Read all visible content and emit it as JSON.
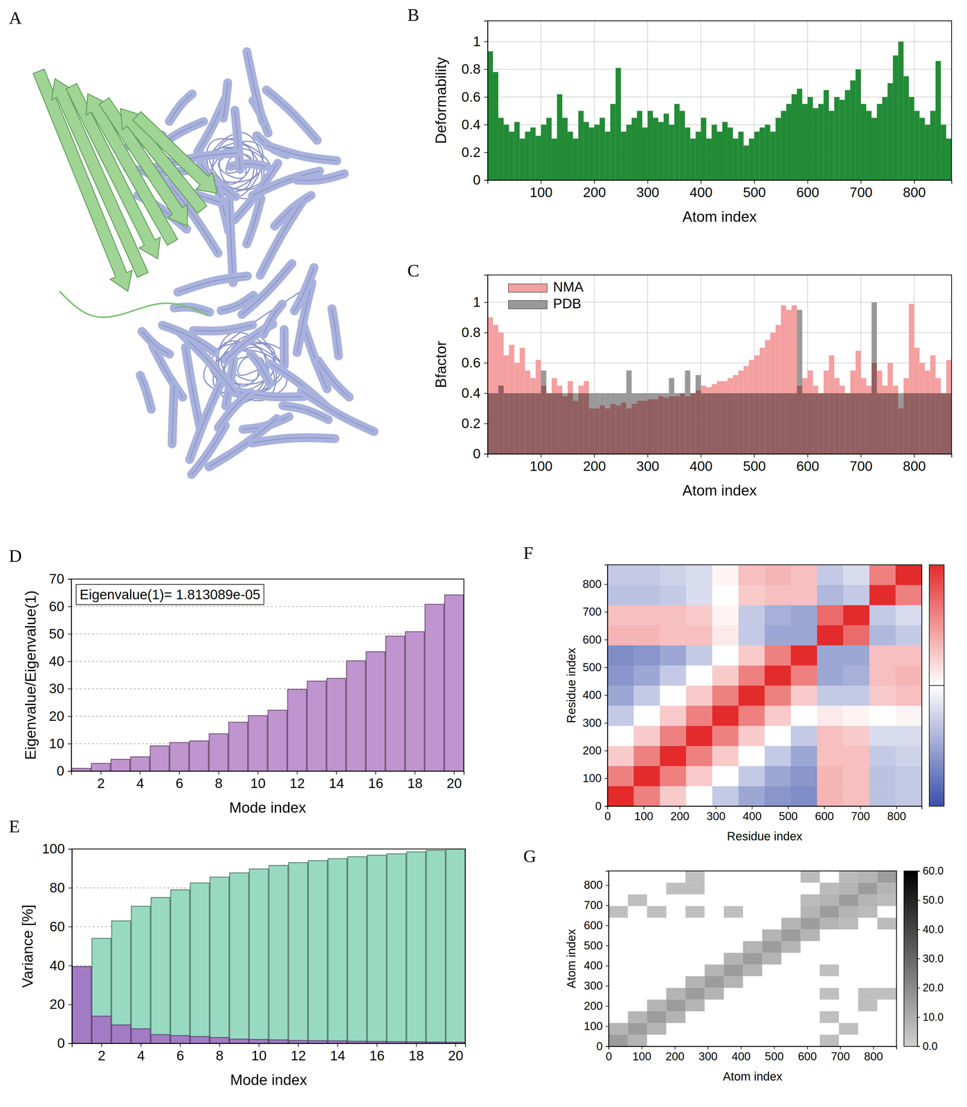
{
  "chart_data": [
    {
      "type": "structure",
      "panel": "A"
    },
    {
      "type": "bar",
      "panel": "B",
      "x_label": "Atom index",
      "y_label": "Deformability",
      "x": [
        5,
        15,
        25,
        35,
        45,
        55,
        65,
        75,
        85,
        95,
        105,
        115,
        125,
        135,
        145,
        155,
        165,
        175,
        185,
        195,
        205,
        215,
        225,
        235,
        245,
        255,
        265,
        275,
        285,
        295,
        305,
        315,
        325,
        335,
        345,
        355,
        365,
        375,
        385,
        395,
        405,
        415,
        425,
        435,
        445,
        455,
        465,
        475,
        485,
        495,
        505,
        515,
        525,
        535,
        545,
        555,
        565,
        575,
        585,
        595,
        605,
        615,
        625,
        635,
        645,
        655,
        665,
        675,
        685,
        695,
        705,
        715,
        725,
        735,
        745,
        755,
        765,
        775,
        785,
        795,
        805,
        815,
        825,
        835,
        845,
        855,
        865
      ],
      "values": [
        0.93,
        0.78,
        0.45,
        0.4,
        0.35,
        0.42,
        0.3,
        0.35,
        0.38,
        0.32,
        0.4,
        0.45,
        0.3,
        0.62,
        0.45,
        0.35,
        0.3,
        0.5,
        0.42,
        0.38,
        0.4,
        0.45,
        0.35,
        0.55,
        0.81,
        0.35,
        0.4,
        0.45,
        0.5,
        0.38,
        0.5,
        0.45,
        0.42,
        0.48,
        0.4,
        0.55,
        0.5,
        0.38,
        0.3,
        0.35,
        0.45,
        0.3,
        0.4,
        0.35,
        0.42,
        0.38,
        0.3,
        0.35,
        0.25,
        0.3,
        0.35,
        0.38,
        0.4,
        0.35,
        0.45,
        0.5,
        0.55,
        0.62,
        0.66,
        0.55,
        0.6,
        0.52,
        0.55,
        0.65,
        0.5,
        0.6,
        0.58,
        0.65,
        0.72,
        0.8,
        0.55,
        0.5,
        0.45,
        0.55,
        0.6,
        0.7,
        0.9,
        1.0,
        0.75,
        0.6,
        0.5,
        0.45,
        0.4,
        0.5,
        0.86,
        0.4,
        0.3
      ],
      "color": "#238b36",
      "xlim": [
        0,
        870
      ],
      "ylim": [
        0,
        1.15
      ],
      "xticks": [
        100,
        200,
        300,
        400,
        500,
        600,
        700,
        800
      ],
      "yticks": [
        0,
        0.2,
        0.4,
        0.6,
        0.8,
        1
      ],
      "grid": true
    },
    {
      "type": "bar",
      "panel": "C",
      "x_label": "Atom index",
      "y_label": "Bfactor",
      "x": [
        5,
        15,
        25,
        35,
        45,
        55,
        65,
        75,
        85,
        95,
        105,
        115,
        125,
        135,
        145,
        155,
        165,
        175,
        185,
        195,
        205,
        215,
        225,
        235,
        245,
        255,
        265,
        275,
        285,
        295,
        305,
        315,
        325,
        335,
        345,
        355,
        365,
        375,
        385,
        395,
        405,
        415,
        425,
        435,
        445,
        455,
        465,
        475,
        485,
        495,
        505,
        515,
        525,
        535,
        545,
        555,
        565,
        575,
        585,
        595,
        605,
        615,
        625,
        635,
        645,
        655,
        665,
        675,
        685,
        695,
        705,
        715,
        725,
        735,
        745,
        755,
        765,
        775,
        785,
        795,
        805,
        815,
        825,
        835,
        845,
        855,
        865
      ],
      "series": [
        {
          "name": "NMA",
          "color": "#f4a0a0",
          "values": [
            0.9,
            0.85,
            0.8,
            0.65,
            0.72,
            0.6,
            0.7,
            0.55,
            0.5,
            0.62,
            0.45,
            0.4,
            0.5,
            0.45,
            0.38,
            0.48,
            0.35,
            0.45,
            0.48,
            0.3,
            0.3,
            0.32,
            0.3,
            0.33,
            0.32,
            0.34,
            0.3,
            0.33,
            0.35,
            0.35,
            0.36,
            0.36,
            0.38,
            0.37,
            0.38,
            0.38,
            0.4,
            0.38,
            0.4,
            0.42,
            0.45,
            0.44,
            0.46,
            0.48,
            0.48,
            0.5,
            0.52,
            0.55,
            0.58,
            0.62,
            0.65,
            0.7,
            0.75,
            0.8,
            0.85,
            0.98,
            0.95,
            0.98,
            0.45,
            0.5,
            0.55,
            0.45,
            0.4,
            0.55,
            0.65,
            0.5,
            0.45,
            0.4,
            0.55,
            0.68,
            0.5,
            0.45,
            0.6,
            0.55,
            0.45,
            0.6,
            0.45,
            0.3,
            0.5,
            0.99,
            0.7,
            0.6,
            0.55,
            0.65,
            0.5,
            0.4,
            0.62
          ]
        },
        {
          "name": "PDB",
          "color": "#999999",
          "values": [
            0.4,
            0.4,
            0.45,
            0.4,
            0.4,
            0.4,
            0.4,
            0.4,
            0.4,
            0.4,
            0.55,
            0.4,
            0.4,
            0.4,
            0.4,
            0.4,
            0.4,
            0.4,
            0.4,
            0.4,
            0.4,
            0.4,
            0.4,
            0.4,
            0.4,
            0.4,
            0.55,
            0.4,
            0.4,
            0.4,
            0.4,
            0.4,
            0.4,
            0.4,
            0.5,
            0.4,
            0.4,
            0.55,
            0.4,
            0.52,
            0.4,
            0.4,
            0.4,
            0.4,
            0.4,
            0.4,
            0.4,
            0.4,
            0.4,
            0.4,
            0.4,
            0.4,
            0.4,
            0.4,
            0.4,
            0.4,
            0.4,
            0.4,
            0.95,
            0.4,
            0.4,
            0.4,
            0.4,
            0.4,
            0.4,
            0.4,
            0.4,
            0.4,
            0.4,
            0.4,
            0.4,
            0.4,
            1.0,
            0.4,
            0.4,
            0.4,
            0.4,
            0.4,
            0.4,
            0.4,
            0.4,
            0.4,
            0.4,
            0.4,
            0.4,
            0.4,
            0.4
          ]
        }
      ],
      "xlim": [
        0,
        870
      ],
      "ylim": [
        0,
        1.18
      ],
      "xticks": [
        100,
        200,
        300,
        400,
        500,
        600,
        700,
        800
      ],
      "yticks": [
        0,
        0.2,
        0.4,
        0.6,
        0.8,
        1
      ],
      "grid": true,
      "legend": "upper left"
    },
    {
      "type": "bar",
      "panel": "D",
      "x_label": "Mode index",
      "y_label": "Eigenvalue/Eigenvalue(1)",
      "annotation": "Eigenvalue(1)= 1.813089e-05",
      "x": [
        1,
        2,
        3,
        4,
        5,
        6,
        7,
        8,
        9,
        10,
        11,
        12,
        13,
        14,
        15,
        16,
        17,
        18,
        19,
        20
      ],
      "values": [
        1,
        2.8,
        4.3,
        5.2,
        9.2,
        10.4,
        11,
        13.6,
        17.8,
        20.2,
        22.2,
        29.8,
        32.8,
        33.8,
        40.2,
        43.5,
        49.2,
        50.8,
        60.8,
        64.2
      ],
      "color": "#bf94cf",
      "xlim": [
        0.5,
        20.5
      ],
      "ylim": [
        0,
        70
      ],
      "xticks": [
        2,
        4,
        6,
        8,
        10,
        12,
        14,
        16,
        18,
        20
      ],
      "yticks": [
        0,
        10,
        20,
        30,
        40,
        50,
        60,
        70
      ],
      "grid": true
    },
    {
      "type": "bar",
      "panel": "E",
      "x_label": "Mode index",
      "y_label": "Variance [%]",
      "x": [
        1,
        2,
        3,
        4,
        5,
        6,
        7,
        8,
        9,
        10,
        11,
        12,
        13,
        14,
        15,
        16,
        17,
        18,
        19,
        20
      ],
      "series": [
        {
          "color": "#98d9c2",
          "values": [
            39.5,
            54,
            63,
            70.5,
            75,
            79,
            82.5,
            85.5,
            87.7,
            89.7,
            91.5,
            93,
            94,
            95,
            96,
            96.8,
            97.5,
            98.5,
            99.3,
            100
          ]
        },
        {
          "color": "#a17cc4",
          "values": [
            39.5,
            14,
            9.5,
            7.5,
            4.5,
            4,
            3.5,
            3,
            2.2,
            2,
            1.8,
            1.5,
            1.4,
            1.3,
            1.1,
            1,
            0.9,
            0.8,
            0.7,
            0.6
          ]
        }
      ],
      "xlim": [
        0.5,
        20.5
      ],
      "ylim": [
        0,
        100
      ],
      "xticks": [
        2,
        4,
        6,
        8,
        10,
        12,
        14,
        16,
        18,
        20
      ],
      "yticks": [
        0,
        20,
        40,
        60,
        80,
        100
      ],
      "grid": true
    },
    {
      "type": "heatmap",
      "panel": "F",
      "x_label": "Residue index",
      "y_label": "Residue index",
      "xbins": [
        0,
        72.5,
        145,
        217.5,
        290,
        362.5,
        435,
        507.5,
        580,
        652.5,
        725,
        797.5,
        870
      ],
      "ybins": [
        0,
        72.5,
        145,
        217.5,
        290,
        362.5,
        435,
        507.5,
        580,
        652.5,
        725,
        797.5,
        870
      ],
      "cells": [
        [
          1,
          0.6,
          0.25,
          0,
          -0.3,
          -0.5,
          -0.6,
          -0.65,
          0.35,
          0.3,
          -0.35,
          -0.3
        ],
        [
          0.6,
          1,
          0.6,
          0.25,
          0,
          -0.3,
          -0.5,
          -0.6,
          0.35,
          0.3,
          -0.35,
          -0.3
        ],
        [
          0.25,
          0.6,
          1,
          0.6,
          0.25,
          0,
          -0.3,
          -0.5,
          0.3,
          0.3,
          -0.3,
          -0.25
        ],
        [
          0,
          0.25,
          0.6,
          1,
          0.6,
          0.25,
          0,
          -0.3,
          0.3,
          0.25,
          -0.2,
          -0.2
        ],
        [
          -0.3,
          0,
          0.25,
          0.6,
          1,
          0.6,
          0.25,
          0,
          0.1,
          0.05,
          0,
          0.05
        ],
        [
          -0.5,
          -0.3,
          0,
          0.25,
          0.6,
          1,
          0.6,
          0.25,
          -0.3,
          -0.3,
          0.25,
          0.3
        ],
        [
          -0.6,
          -0.5,
          -0.3,
          0,
          0.25,
          0.6,
          1,
          0.6,
          -0.5,
          -0.45,
          0.3,
          0.35
        ],
        [
          -0.65,
          -0.6,
          -0.5,
          -0.3,
          0,
          0.25,
          0.6,
          1,
          -0.5,
          -0.5,
          0.3,
          0.3
        ],
        [
          0.35,
          0.35,
          0.3,
          0.3,
          0.1,
          -0.3,
          -0.5,
          -0.5,
          1,
          0.7,
          -0.4,
          -0.3
        ],
        [
          0.3,
          0.3,
          0.3,
          0.25,
          0.05,
          -0.3,
          -0.45,
          -0.5,
          0.7,
          1,
          -0.3,
          -0.2
        ],
        [
          -0.35,
          -0.35,
          -0.3,
          -0.2,
          0,
          0.25,
          0.3,
          0.3,
          -0.4,
          -0.3,
          1,
          0.6
        ],
        [
          -0.3,
          -0.3,
          -0.25,
          -0.2,
          0.05,
          0.3,
          0.35,
          0.3,
          -0.3,
          -0.2,
          0.6,
          1
        ]
      ],
      "xlim": [
        0,
        870
      ],
      "ylim": [
        0,
        870
      ],
      "xticks": [
        0,
        100,
        200,
        300,
        400,
        500,
        600,
        700,
        800
      ],
      "yticks": [
        0,
        100,
        200,
        300,
        400,
        500,
        600,
        700,
        800
      ],
      "colorbar": {
        "range": [
          -1,
          1
        ]
      }
    },
    {
      "type": "heatmap",
      "panel": "G",
      "x_label": "Atom index",
      "y_label": "Atom index",
      "cell_size": 58,
      "cells": [
        [
          0,
          0,
          15
        ],
        [
          58,
          58,
          15
        ],
        [
          116,
          116,
          15
        ],
        [
          174,
          174,
          15
        ],
        [
          232,
          232,
          15
        ],
        [
          290,
          290,
          15
        ],
        [
          348,
          348,
          15
        ],
        [
          406,
          406,
          15
        ],
        [
          464,
          464,
          15
        ],
        [
          522,
          522,
          15
        ],
        [
          580,
          580,
          15
        ],
        [
          638,
          638,
          15
        ],
        [
          696,
          696,
          15
        ],
        [
          754,
          754,
          15
        ],
        [
          812,
          812,
          15
        ],
        [
          0,
          58,
          8
        ],
        [
          58,
          0,
          8
        ],
        [
          58,
          116,
          8
        ],
        [
          116,
          58,
          8
        ],
        [
          116,
          174,
          8
        ],
        [
          174,
          116,
          8
        ],
        [
          174,
          232,
          8
        ],
        [
          232,
          174,
          8
        ],
        [
          232,
          290,
          8
        ],
        [
          290,
          232,
          8
        ],
        [
          290,
          348,
          8
        ],
        [
          348,
          290,
          8
        ],
        [
          348,
          406,
          8
        ],
        [
          406,
          348,
          8
        ],
        [
          406,
          464,
          8
        ],
        [
          464,
          406,
          8
        ],
        [
          464,
          522,
          8
        ],
        [
          522,
          464,
          8
        ],
        [
          522,
          580,
          8
        ],
        [
          580,
          522,
          8
        ],
        [
          580,
          638,
          8
        ],
        [
          638,
          580,
          8
        ],
        [
          638,
          696,
          8
        ],
        [
          696,
          638,
          8
        ],
        [
          696,
          754,
          8
        ],
        [
          754,
          696,
          8
        ],
        [
          754,
          812,
          8
        ],
        [
          812,
          754,
          8
        ],
        [
          580,
          696,
          6
        ],
        [
          696,
          580,
          6
        ],
        [
          638,
          754,
          6
        ],
        [
          754,
          638,
          6
        ],
        [
          580,
          812,
          6
        ],
        [
          812,
          580,
          6
        ],
        [
          696,
          812,
          6
        ],
        [
          812,
          696,
          6
        ],
        [
          0,
          638,
          5
        ],
        [
          638,
          0,
          5
        ],
        [
          116,
          638,
          5
        ],
        [
          638,
          116,
          5
        ],
        [
          232,
          638,
          5
        ],
        [
          638,
          232,
          5
        ],
        [
          348,
          638,
          5
        ],
        [
          638,
          348,
          5
        ],
        [
          174,
          754,
          5
        ],
        [
          754,
          174,
          5
        ],
        [
          232,
          754,
          5
        ],
        [
          754,
          232,
          5
        ],
        [
          58,
          696,
          5
        ],
        [
          696,
          58,
          5
        ],
        [
          232,
          812,
          5
        ],
        [
          812,
          232,
          5
        ]
      ],
      "xlim": [
        0,
        870
      ],
      "ylim": [
        0,
        870
      ],
      "xticks": [
        0,
        100,
        200,
        300,
        400,
        500,
        600,
        700,
        800
      ],
      "yticks": [
        0,
        100,
        200,
        300,
        400,
        500,
        600,
        700,
        800
      ],
      "colorbar": {
        "range": [
          0,
          60
        ],
        "ticks": [
          {
            "value": 0,
            "label": "0.0"
          },
          {
            "value": 10,
            "label": "10.0"
          },
          {
            "value": 20,
            "label": "20.0"
          },
          {
            "value": 30,
            "label": "30.0"
          },
          {
            "value": 40,
            "label": "40.0"
          },
          {
            "value": 50,
            "label": "50.0"
          },
          {
            "value": 60,
            "label": "60.0"
          }
        ]
      }
    }
  ]
}
